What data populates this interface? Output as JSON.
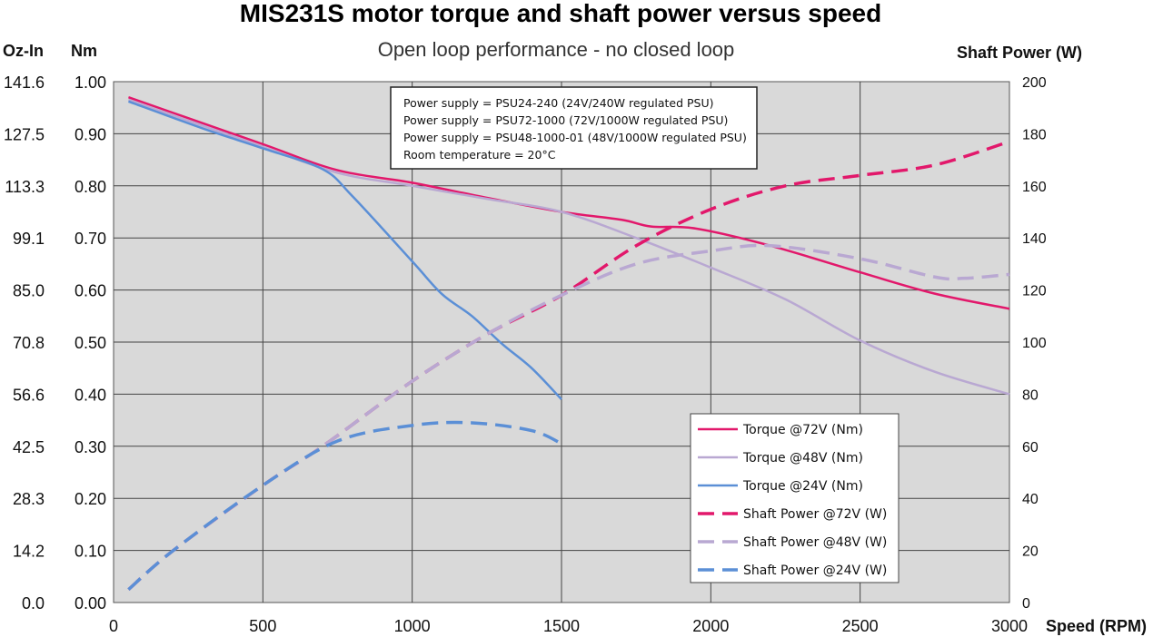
{
  "chart_data": {
    "type": "line",
    "title": "MIS231S motor torque and shaft power versus speed",
    "subtitle": "Open loop performance - no closed loop",
    "xlabel": "Speed (RPM)",
    "ylabel_left_outer": "Oz-In",
    "ylabel_left": "Nm",
    "ylabel_right": "Shaft Power (W)",
    "xlim": [
      0,
      3000
    ],
    "ylim_left": [
      0,
      1.0
    ],
    "ylim_right": [
      0,
      200
    ],
    "x_ticks": [
      "0",
      "500",
      "1000",
      "1500",
      "2000",
      "2500",
      "3000"
    ],
    "y_ticks_left": [
      "0.00",
      "0.10",
      "0.20",
      "0.30",
      "0.40",
      "0.50",
      "0.60",
      "0.70",
      "0.80",
      "0.90",
      "1.00"
    ],
    "y_ticks_oz": [
      "0.0",
      "14.2",
      "28.3",
      "42.5",
      "56.6",
      "70.8",
      "85.0",
      "99.1",
      "113.3",
      "127.5",
      "141.6"
    ],
    "y_ticks_right": [
      "0",
      "20",
      "40",
      "60",
      "80",
      "100",
      "120",
      "140",
      "160",
      "180",
      "200"
    ],
    "grid": true,
    "background": "#d9d9d9",
    "legend_position": "bottom-right",
    "annotations": [
      "Power supply = PSU24-240 (24V/240W regulated PSU)",
      "Power supply = PSU72-1000 (72V/1000W regulated PSU)",
      "Power supply = PSU48-1000-01 (48V/1000W regulated PSU)",
      "Room temperature = 20°C"
    ],
    "series": [
      {
        "name": "Torque @72V (Nm)",
        "axis": "left",
        "color": "#e2186b",
        "dash": false,
        "x": [
          50,
          250,
          500,
          750,
          1000,
          1250,
          1500,
          1700,
          1800,
          1950,
          2200,
          2500,
          2750,
          3000
        ],
        "y": [
          0.97,
          0.93,
          0.88,
          0.83,
          0.806,
          0.777,
          0.75,
          0.735,
          0.722,
          0.718,
          0.685,
          0.634,
          0.593,
          0.564
        ]
      },
      {
        "name": "Torque @48V (Nm)",
        "axis": "left",
        "color": "#b9a8d2",
        "dash": false,
        "x": [
          50,
          250,
          500,
          750,
          1000,
          1250,
          1500,
          1750,
          2000,
          2250,
          2500,
          2750,
          3000
        ],
        "y": [
          0.965,
          0.925,
          0.875,
          0.825,
          0.8,
          0.775,
          0.75,
          0.7,
          0.643,
          0.582,
          0.503,
          0.443,
          0.4
        ]
      },
      {
        "name": "Torque @24V (Nm)",
        "axis": "left",
        "color": "#5b8fd6",
        "dash": false,
        "x": [
          50,
          300,
          500,
          700,
          800,
          1000,
          1100,
          1200,
          1300,
          1400,
          1500
        ],
        "y": [
          0.962,
          0.91,
          0.872,
          0.832,
          0.78,
          0.655,
          0.592,
          0.55,
          0.497,
          0.45,
          0.39
        ]
      },
      {
        "name": "Shaft Power @72V (W)",
        "axis": "right",
        "color": "#e2186b",
        "dash": true,
        "x": [
          50,
          200,
          500,
          700,
          1000,
          1250,
          1500,
          1750,
          2000,
          2250,
          2500,
          2750,
          3000
        ],
        "y": [
          5,
          20,
          45,
          60,
          85,
          103,
          118,
          137,
          151,
          160,
          164,
          168,
          177
        ]
      },
      {
        "name": "Shaft Power @48V (W)",
        "axis": "right",
        "color": "#b9a8d2",
        "dash": true,
        "x": [
          50,
          200,
          500,
          700,
          1000,
          1250,
          1500,
          1750,
          2000,
          2200,
          2500,
          2750,
          2850,
          3000
        ],
        "y": [
          5,
          20,
          45,
          60,
          85,
          103,
          118,
          130,
          135,
          137,
          132,
          125,
          124.5,
          126
        ]
      },
      {
        "name": "Shaft Power @24V (W)",
        "axis": "right",
        "color": "#5b8fd6",
        "dash": true,
        "x": [
          50,
          200,
          500,
          750,
          1000,
          1200,
          1400,
          1500
        ],
        "y": [
          5,
          20,
          45,
          62,
          68,
          69,
          66,
          61
        ]
      }
    ]
  }
}
